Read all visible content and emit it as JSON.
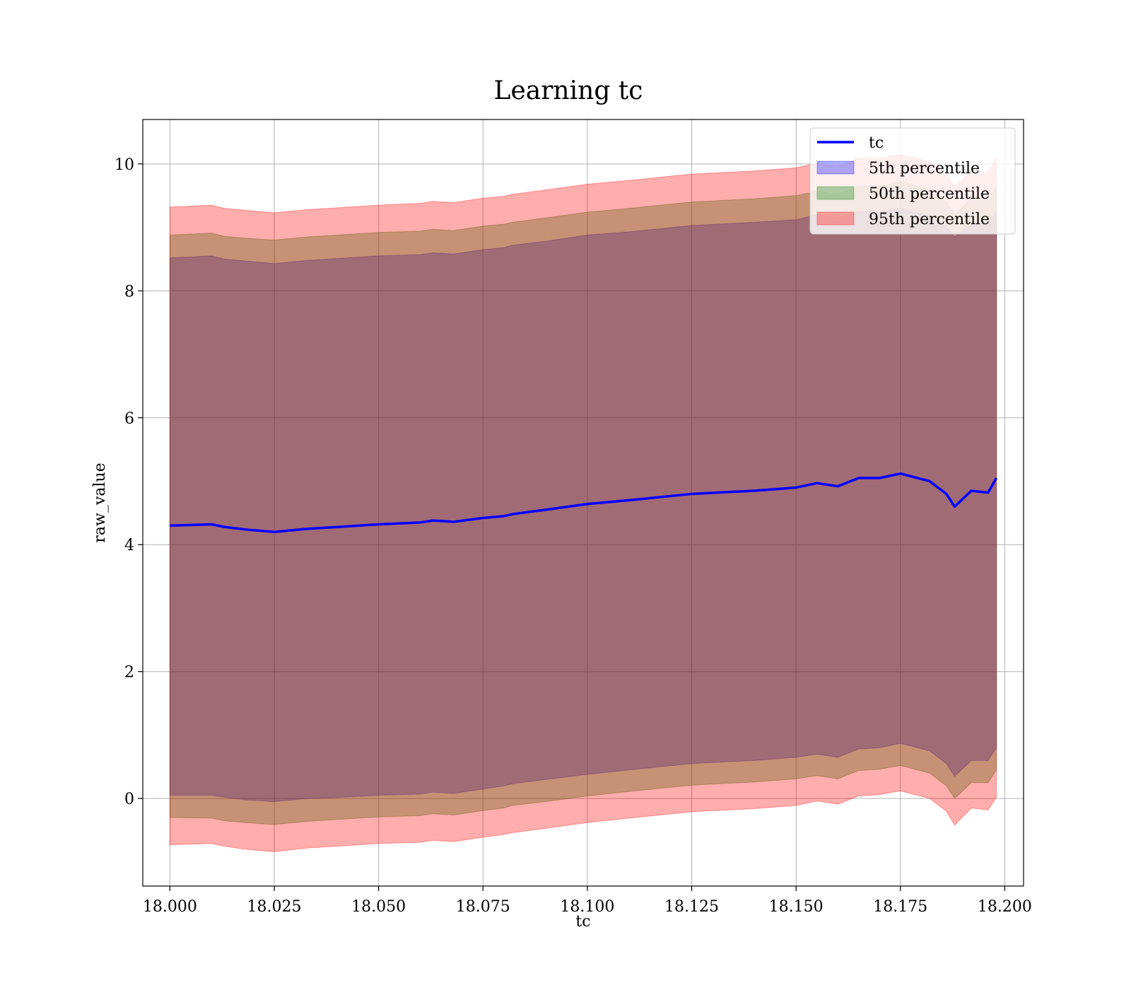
{
  "chart_data": {
    "type": "area",
    "title": "Learning tc",
    "xlabel": "tc",
    "ylabel": "raw_value",
    "xlim": [
      17.9935,
      18.2045
    ],
    "ylim": [
      -1.38,
      10.7
    ],
    "xticks": [
      18.0,
      18.025,
      18.05,
      18.075,
      18.1,
      18.125,
      18.15,
      18.175,
      18.2
    ],
    "xtick_labels": [
      "18.000",
      "18.025",
      "18.050",
      "18.075",
      "18.100",
      "18.125",
      "18.150",
      "18.175",
      "18.200"
    ],
    "yticks": [
      0,
      2,
      4,
      6,
      8,
      10
    ],
    "ytick_labels": [
      "0",
      "2",
      "4",
      "6",
      "8",
      "10"
    ],
    "grid": true,
    "legend_position": "top-right",
    "legend": [
      {
        "label": "tc",
        "kind": "line",
        "color": "#0000ff"
      },
      {
        "label": "5th percentile",
        "kind": "patch",
        "color": "#0000ff"
      },
      {
        "label": "50th percentile",
        "kind": "patch",
        "color": "#008000"
      },
      {
        "label": "95th percentile",
        "kind": "patch",
        "color": "#ff0000"
      }
    ],
    "x": [
      18.0,
      18.01,
      18.013,
      18.018,
      18.025,
      18.033,
      18.038,
      18.05,
      18.06,
      18.063,
      18.068,
      18.075,
      18.08,
      18.082,
      18.09,
      18.1,
      18.11,
      18.125,
      18.14,
      18.15,
      18.155,
      18.16,
      18.165,
      18.17,
      18.175,
      18.182,
      18.186,
      18.188,
      18.192,
      18.196,
      18.198
    ],
    "series": [
      {
        "name": "tc",
        "role": "line",
        "values": [
          4.3,
          4.32,
          4.28,
          4.24,
          4.2,
          4.25,
          4.27,
          4.32,
          4.35,
          4.38,
          4.36,
          4.42,
          4.45,
          4.48,
          4.55,
          4.64,
          4.7,
          4.8,
          4.85,
          4.9,
          4.97,
          4.92,
          5.05,
          5.05,
          5.12,
          5.0,
          4.8,
          4.6,
          4.85,
          4.82,
          5.05
        ]
      },
      {
        "name": "5th percentile",
        "role": "band",
        "lower": [
          0.05,
          0.05,
          0.02,
          -0.02,
          -0.05,
          0.0,
          0.01,
          0.05,
          0.07,
          0.1,
          0.08,
          0.15,
          0.2,
          0.23,
          0.3,
          0.38,
          0.45,
          0.55,
          0.6,
          0.65,
          0.7,
          0.65,
          0.78,
          0.8,
          0.87,
          0.75,
          0.55,
          0.35,
          0.6,
          0.6,
          0.8
        ],
        "upper": [
          8.52,
          8.55,
          8.5,
          8.47,
          8.43,
          8.48,
          8.5,
          8.55,
          8.57,
          8.6,
          8.58,
          8.65,
          8.68,
          8.72,
          8.78,
          8.88,
          8.93,
          9.03,
          9.08,
          9.12,
          9.2,
          9.15,
          9.25,
          9.25,
          9.3,
          9.18,
          9.0,
          8.85,
          9.05,
          9.05,
          9.25
        ]
      },
      {
        "name": "50th percentile",
        "role": "band",
        "lower": [
          -0.3,
          -0.31,
          -0.35,
          -0.38,
          -0.41,
          -0.36,
          -0.34,
          -0.29,
          -0.27,
          -0.24,
          -0.26,
          -0.19,
          -0.15,
          -0.11,
          -0.05,
          0.04,
          0.11,
          0.21,
          0.26,
          0.31,
          0.36,
          0.31,
          0.44,
          0.46,
          0.52,
          0.4,
          0.2,
          0.0,
          0.25,
          0.25,
          0.45
        ],
        "upper": [
          8.88,
          8.91,
          8.86,
          8.83,
          8.8,
          8.85,
          8.87,
          8.92,
          8.94,
          8.97,
          8.95,
          9.02,
          9.05,
          9.08,
          9.15,
          9.24,
          9.3,
          9.4,
          9.45,
          9.5,
          9.57,
          9.52,
          9.65,
          9.65,
          9.72,
          9.6,
          9.4,
          9.2,
          9.45,
          9.42,
          9.65
        ]
      },
      {
        "name": "95th percentile",
        "role": "band",
        "lower": [
          -0.73,
          -0.71,
          -0.75,
          -0.8,
          -0.84,
          -0.78,
          -0.76,
          -0.71,
          -0.69,
          -0.66,
          -0.68,
          -0.61,
          -0.57,
          -0.54,
          -0.47,
          -0.38,
          -0.31,
          -0.21,
          -0.16,
          -0.11,
          -0.04,
          -0.09,
          0.04,
          0.06,
          0.12,
          0.0,
          -0.2,
          -0.42,
          -0.15,
          -0.18,
          0.02
        ],
        "upper": [
          9.32,
          9.35,
          9.3,
          9.27,
          9.23,
          9.28,
          9.3,
          9.35,
          9.38,
          9.41,
          9.39,
          9.46,
          9.49,
          9.52,
          9.59,
          9.68,
          9.74,
          9.84,
          9.89,
          9.94,
          10.01,
          9.96,
          10.09,
          10.09,
          10.15,
          10.04,
          9.84,
          9.64,
          9.89,
          9.86,
          10.09
        ]
      }
    ]
  }
}
